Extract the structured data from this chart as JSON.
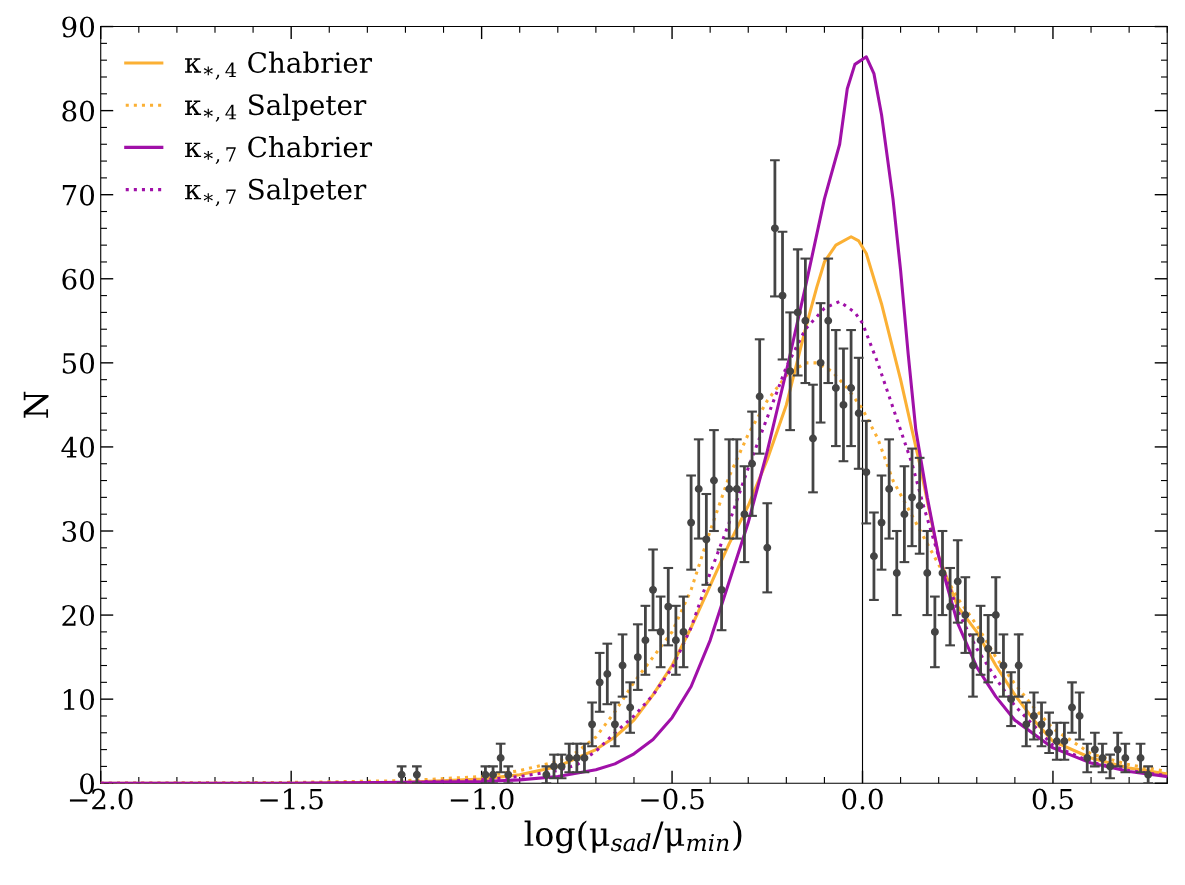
{
  "chart_data": {
    "type": "line",
    "xlabel": "log(μ$_{sad}$/μ$_{min}$)",
    "ylabel": "N",
    "xlim": [
      -2.0,
      0.8
    ],
    "xticks": [
      {
        "value": -2.0,
        "label": "−2.0"
      },
      {
        "value": -1.5,
        "label": "−1.5"
      },
      {
        "value": -1.0,
        "label": "−1.0"
      },
      {
        "value": -0.5,
        "label": "−0.5"
      },
      {
        "value": 0.0,
        "label": "0.0"
      },
      {
        "value": 0.5,
        "label": "0.5"
      }
    ],
    "ylim": [
      0,
      90
    ],
    "yticks": [
      0,
      10,
      20,
      30,
      40,
      50,
      60,
      70,
      80,
      90
    ],
    "legend": "top left",
    "grid": false,
    "ref_lines": [
      {
        "axis": "x",
        "value": 0.0,
        "color": "#000000",
        "line_style": "solid"
      }
    ],
    "series": [
      {
        "name": "κ$_{∗,4}$ Chabrier",
        "color": "#fbb034",
        "line_style": "solid",
        "x": [
          -2.0,
          -1.5,
          -1.2,
          -1.0,
          -0.9,
          -0.8,
          -0.7,
          -0.65,
          -0.6,
          -0.55,
          -0.5,
          -0.45,
          -0.4,
          -0.35,
          -0.3,
          -0.25,
          -0.2,
          -0.15,
          -0.12,
          -0.1,
          -0.07,
          -0.03,
          -0.01,
          0.01,
          0.05,
          0.1,
          0.15,
          0.2,
          0.25,
          0.3,
          0.35,
          0.4,
          0.45,
          0.5,
          0.6,
          0.7,
          0.8
        ],
        "values": [
          0,
          0,
          0.1,
          0.5,
          1.0,
          2.0,
          4,
          5.5,
          7.5,
          10.5,
          14,
          18.5,
          23.5,
          28.5,
          33,
          38.5,
          45,
          54,
          59,
          62,
          64,
          65,
          64.5,
          63,
          57,
          48,
          38,
          27,
          21,
          18,
          14,
          10.5,
          7.5,
          5,
          3,
          1.8,
          1.1
        ]
      },
      {
        "name": "κ$_{∗,4}$ Salpeter",
        "color": "#fbb034",
        "line_style": "dotted",
        "x": [
          -2.0,
          -1.5,
          -1.2,
          -1.0,
          -0.9,
          -0.8,
          -0.75,
          -0.7,
          -0.65,
          -0.6,
          -0.55,
          -0.5,
          -0.45,
          -0.4,
          -0.35,
          -0.3,
          -0.25,
          -0.2,
          -0.15,
          -0.12,
          -0.08,
          -0.04,
          0.0,
          0.04,
          0.08,
          0.14,
          0.2,
          0.25,
          0.3,
          0.35,
          0.4,
          0.45,
          0.5,
          0.6,
          0.7,
          0.8
        ],
        "values": [
          0,
          0.1,
          0.3,
          0.8,
          1.5,
          2.6,
          3.7,
          5.5,
          8.5,
          12,
          15,
          18,
          23,
          30,
          36.5,
          41.5,
          45.5,
          48.5,
          50,
          50,
          49,
          47,
          44.5,
          41,
          36,
          31,
          26,
          22,
          18.8,
          15,
          11.8,
          9,
          6.5,
          3.5,
          2.2,
          1.4
        ]
      },
      {
        "name": "κ$_{∗,7}$ Chabrier",
        "color": "#a010a8",
        "line_style": "solid",
        "x": [
          -2.0,
          -1.5,
          -1.2,
          -1.0,
          -0.9,
          -0.8,
          -0.7,
          -0.65,
          -0.6,
          -0.55,
          -0.5,
          -0.45,
          -0.4,
          -0.35,
          -0.3,
          -0.25,
          -0.2,
          -0.15,
          -0.1,
          -0.06,
          -0.04,
          -0.02,
          0.01,
          0.03,
          0.05,
          0.08,
          0.1,
          0.12,
          0.14,
          0.17,
          0.2,
          0.25,
          0.3,
          0.35,
          0.4,
          0.5,
          0.6,
          0.7,
          0.8
        ],
        "values": [
          0,
          0,
          0.1,
          0.2,
          0.4,
          0.8,
          1.6,
          2.3,
          3.5,
          5.2,
          7.8,
          11.5,
          17,
          24,
          31,
          39.5,
          49,
          59,
          69.5,
          76,
          82.6,
          85.5,
          86.4,
          84.4,
          79.5,
          69.5,
          61,
          51,
          42,
          34,
          27,
          19,
          13.8,
          10.3,
          7.5,
          4.2,
          2.4,
          1.4,
          0.8
        ]
      },
      {
        "name": "κ$_{∗,7}$ Salpeter",
        "color": "#a010a8",
        "line_style": "dotted",
        "x": [
          -2.0,
          -1.5,
          -1.2,
          -1.0,
          -0.9,
          -0.8,
          -0.75,
          -0.7,
          -0.65,
          -0.6,
          -0.55,
          -0.5,
          -0.45,
          -0.4,
          -0.35,
          -0.3,
          -0.25,
          -0.2,
          -0.15,
          -0.1,
          -0.06,
          -0.02,
          0.0,
          0.04,
          0.07,
          0.1,
          0.13,
          0.16,
          0.2,
          0.25,
          0.3,
          0.35,
          0.4,
          0.5,
          0.6,
          0.7,
          0.8
        ],
        "values": [
          0,
          0,
          0.1,
          0.4,
          0.8,
          1.5,
          2.2,
          3.8,
          6,
          8,
          10.5,
          13.7,
          18.5,
          25,
          31,
          37.5,
          43.5,
          49.5,
          54,
          56.5,
          57.3,
          56,
          54.7,
          50,
          46,
          42,
          38,
          33,
          27,
          20.5,
          16,
          12.5,
          9.2,
          4.5,
          2.5,
          1.5,
          0.9
        ]
      },
      {
        "type": "scatter",
        "color": "#444444",
        "marker": "circle",
        "x": [
          -1.21,
          -1.17,
          -0.99,
          -0.97,
          -0.95,
          -0.93,
          -0.83,
          -0.81,
          -0.79,
          -0.77,
          -0.75,
          -0.73,
          -0.71,
          -0.69,
          -0.67,
          -0.65,
          -0.63,
          -0.61,
          -0.59,
          -0.57,
          -0.55,
          -0.53,
          -0.51,
          -0.49,
          -0.47,
          -0.45,
          -0.43,
          -0.41,
          -0.39,
          -0.37,
          -0.35,
          -0.33,
          -0.31,
          -0.29,
          -0.27,
          -0.25,
          -0.23,
          -0.21,
          -0.19,
          -0.17,
          -0.15,
          -0.13,
          -0.11,
          -0.09,
          -0.07,
          -0.05,
          -0.03,
          -0.01,
          0.01,
          0.03,
          0.05,
          0.07,
          0.09,
          0.11,
          0.13,
          0.15,
          0.17,
          0.19,
          0.21,
          0.23,
          0.25,
          0.27,
          0.29,
          0.31,
          0.33,
          0.35,
          0.37,
          0.39,
          0.41,
          0.43,
          0.45,
          0.47,
          0.49,
          0.51,
          0.53,
          0.55,
          0.57,
          0.59,
          0.61,
          0.63,
          0.65,
          0.67,
          0.69,
          0.73,
          0.75
        ],
        "values": [
          1,
          1,
          1,
          1,
          3,
          1,
          1,
          2,
          2,
          3,
          3,
          3,
          7,
          12,
          13,
          7,
          14,
          9,
          15,
          17,
          23,
          18,
          21,
          17,
          18,
          31,
          35,
          29,
          36,
          23,
          35,
          35,
          32,
          38,
          46,
          28,
          66,
          58,
          49,
          56,
          55,
          41,
          50,
          55,
          47,
          45,
          47,
          44,
          37,
          27,
          31,
          35,
          25,
          32,
          34,
          33,
          25,
          18,
          25,
          21,
          24,
          20,
          14,
          17,
          16,
          20,
          14,
          10,
          14,
          7,
          8,
          7,
          6,
          5,
          5,
          9,
          8,
          3,
          4,
          3,
          2,
          4,
          3,
          3,
          1
        ],
        "errors": [
          1,
          1,
          1,
          1,
          1.7,
          1,
          1,
          1.4,
          1.4,
          1.7,
          1.7,
          1.7,
          2.6,
          3.5,
          3.6,
          2.6,
          3.7,
          3,
          3.9,
          4.1,
          4.8,
          4.2,
          4.6,
          4.1,
          4.2,
          5.6,
          5.9,
          5.4,
          6,
          4.8,
          5.9,
          5.9,
          5.7,
          6.2,
          6.8,
          5.3,
          8.1,
          7.6,
          7,
          7.5,
          7.4,
          6.4,
          7.1,
          7.4,
          6.9,
          6.7,
          6.9,
          6.6,
          6.1,
          5.2,
          5.6,
          5.9,
          5,
          5.7,
          5.8,
          5.7,
          5,
          4.2,
          5,
          4.6,
          4.9,
          4.5,
          3.7,
          4.1,
          4,
          4.5,
          3.7,
          3.2,
          3.7,
          2.6,
          2.8,
          2.6,
          2.4,
          2.2,
          2.2,
          3,
          2.8,
          1.7,
          2,
          1.7,
          1.4,
          2,
          1.7,
          1.7,
          1
        ]
      }
    ]
  }
}
